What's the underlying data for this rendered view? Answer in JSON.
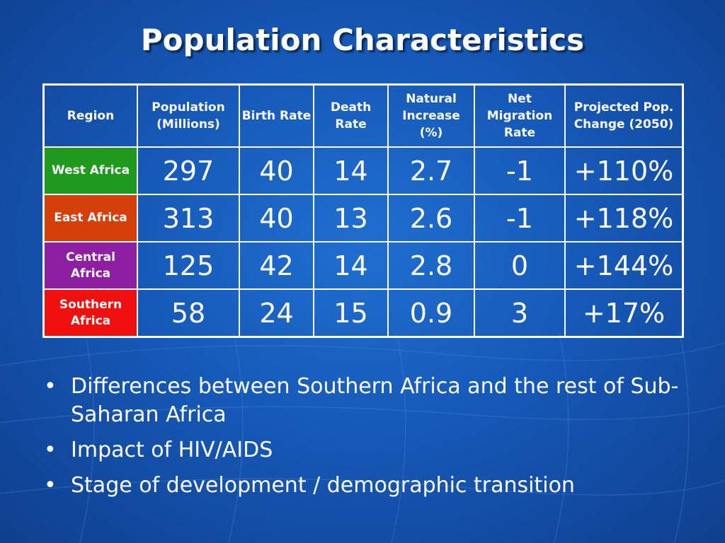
{
  "slide": {
    "title": "Population Characteristics"
  },
  "table": {
    "headers": [
      "Region",
      "Population (Millions)",
      "Birth Rate",
      "Death Rate",
      "Natural Increase (%)",
      "Net Migration Rate",
      "Projected Pop. Change (2050)"
    ],
    "rows": [
      {
        "region": "West Africa",
        "color": "#1f9a1f",
        "population": "297",
        "birth_rate": "40",
        "death_rate": "14",
        "natural_increase": "2.7",
        "net_migration": "-1",
        "projected_change": "+110%"
      },
      {
        "region": "East Africa",
        "color": "#d53f0a",
        "population": "313",
        "birth_rate": "40",
        "death_rate": "13",
        "natural_increase": "2.6",
        "net_migration": "-1",
        "projected_change": "+118%"
      },
      {
        "region": "Central Africa",
        "color": "#8e1fa3",
        "population": "125",
        "birth_rate": "42",
        "death_rate": "14",
        "natural_increase": "2.8",
        "net_migration": "0",
        "projected_change": "+144%"
      },
      {
        "region": "Southern Africa",
        "color": "#f01010",
        "population": "58",
        "birth_rate": "24",
        "death_rate": "15",
        "natural_increase": "0.9",
        "net_migration": "3",
        "projected_change": "+17%"
      }
    ]
  },
  "bullets": [
    "Differences between Southern Africa and the rest of Sub-Saharan Africa",
    "Impact of HIV/AIDS",
    "Stage of development / demographic transition"
  ],
  "bullet_marker": "•"
}
